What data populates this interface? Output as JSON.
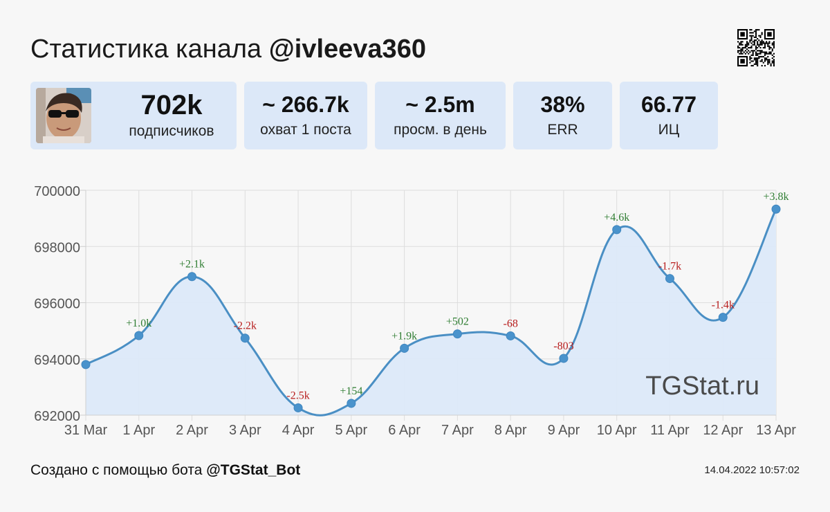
{
  "header": {
    "title_prefix": "Статистика канала",
    "channel": "@ivleeva360"
  },
  "stats": [
    {
      "value": "702k",
      "label": "подписчиков"
    },
    {
      "value": "~ 266.7k",
      "label": "охват 1 поста"
    },
    {
      "value": "~ 2.5m",
      "label": "просм. в день"
    },
    {
      "value": "38%",
      "label": "ERR"
    },
    {
      "value": "66.77",
      "label": "ИЦ"
    }
  ],
  "chart_data": {
    "type": "area",
    "x": [
      "31 Mar",
      "1 Apr",
      "2 Apr",
      "3 Apr",
      "4 Apr",
      "5 Apr",
      "6 Apr",
      "7 Apr",
      "8 Apr",
      "9 Apr",
      "10 Apr",
      "11 Apr",
      "12 Apr",
      "13 Apr"
    ],
    "values": [
      693800,
      694830,
      696930,
      694740,
      692260,
      692420,
      694380,
      694890,
      694820,
      694020,
      698600,
      696860,
      695480,
      699330
    ],
    "point_labels": [
      "",
      "+1.0k",
      "+2.1k",
      "-2.2k",
      "-2.5k",
      "+154",
      "+1.9k",
      "+502",
      "-68",
      "-803",
      "+4.6k",
      "-1.7k",
      "-1.4k",
      "+3.8k"
    ],
    "ylim": [
      692000,
      700000
    ],
    "yticks": [
      "700000",
      "698000",
      "696000",
      "694000",
      "692000"
    ],
    "grid": true,
    "colors": {
      "line": "#4a8fc4",
      "fill": "#dce9f9",
      "marker": "#4a93cc",
      "positive": "#2f7d32",
      "negative": "#b71c1c",
      "grid": "#dddddd"
    },
    "watermark": "TGStat.ru"
  },
  "footer": {
    "created_prefix": "Создано с помощью бота",
    "bot": "@TGStat_Bot",
    "timestamp": "14.04.2022 10:57:02"
  }
}
